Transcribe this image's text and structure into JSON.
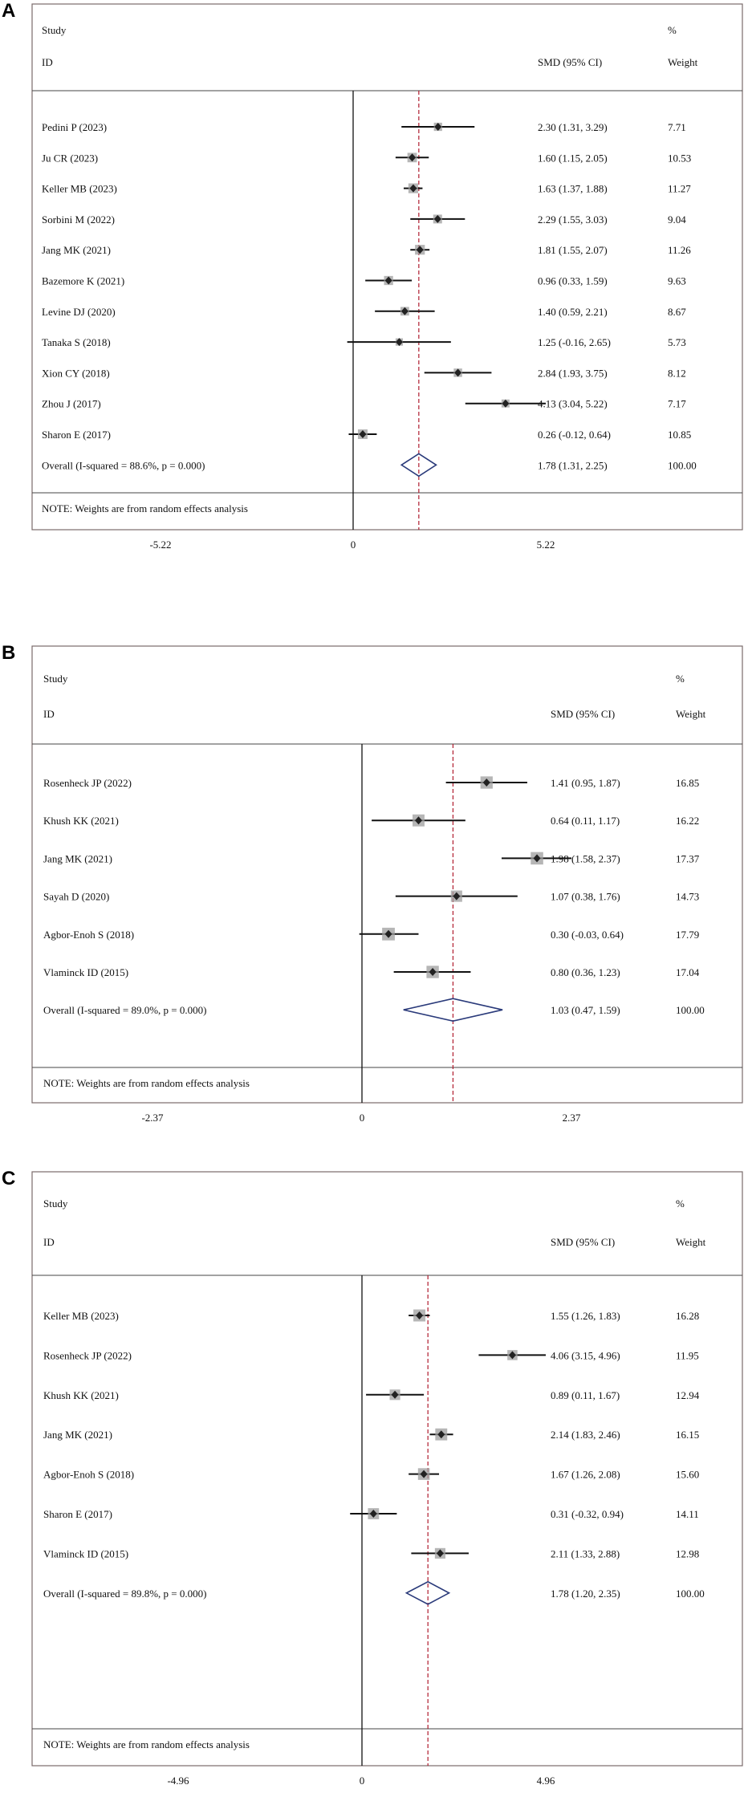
{
  "panels": [
    {
      "label": "A",
      "headers": {
        "study": "Study",
        "id": "ID",
        "smd": "SMD (95% CI)",
        "pct": "%",
        "weight": "Weight"
      },
      "note": "NOTE: Weights are from random effects analysis",
      "axis_ticks": [
        "-5.22",
        "0",
        "5.22"
      ],
      "chart_data": {
        "type": "forest",
        "xlim": [
          -5.22,
          5.22
        ],
        "null_line": 0,
        "studies": [
          {
            "id": "Pedini P (2023)",
            "smd": 2.3,
            "lo": 1.31,
            "hi": 3.29,
            "ci": "2.30 (1.31, 3.29)",
            "weight": "7.71"
          },
          {
            "id": "Ju CR (2023)",
            "smd": 1.6,
            "lo": 1.15,
            "hi": 2.05,
            "ci": "1.60 (1.15, 2.05)",
            "weight": "10.53"
          },
          {
            "id": "Keller MB (2023)",
            "smd": 1.63,
            "lo": 1.37,
            "hi": 1.88,
            "ci": "1.63 (1.37, 1.88)",
            "weight": "11.27"
          },
          {
            "id": "Sorbini M (2022)",
            "smd": 2.29,
            "lo": 1.55,
            "hi": 3.03,
            "ci": "2.29 (1.55, 3.03)",
            "weight": "9.04"
          },
          {
            "id": "Jang MK (2021)",
            "smd": 1.81,
            "lo": 1.55,
            "hi": 2.07,
            "ci": "1.81 (1.55, 2.07)",
            "weight": "11.26"
          },
          {
            "id": "Bazemore K (2021)",
            "smd": 0.96,
            "lo": 0.33,
            "hi": 1.59,
            "ci": "0.96 (0.33, 1.59)",
            "weight": "9.63"
          },
          {
            "id": "Levine DJ (2020)",
            "smd": 1.4,
            "lo": 0.59,
            "hi": 2.21,
            "ci": "1.40 (0.59, 2.21)",
            "weight": "8.67"
          },
          {
            "id": "Tanaka S (2018)",
            "smd": 1.25,
            "lo": -0.16,
            "hi": 2.65,
            "ci": "1.25 (-0.16, 2.65)",
            "weight": "5.73"
          },
          {
            "id": "Xion CY (2018)",
            "smd": 2.84,
            "lo": 1.93,
            "hi": 3.75,
            "ci": "2.84 (1.93, 3.75)",
            "weight": "8.12"
          },
          {
            "id": "Zhou J (2017)",
            "smd": 4.13,
            "lo": 3.04,
            "hi": 5.22,
            "ci": "4.13 (3.04, 5.22)",
            "weight": "7.17"
          },
          {
            "id": "Sharon E (2017)",
            "smd": 0.26,
            "lo": -0.12,
            "hi": 0.64,
            "ci": "0.26 (-0.12, 0.64)",
            "weight": "10.85"
          }
        ],
        "overall": {
          "id": "Overall  (I-squared = 88.6%, p = 0.000)",
          "smd": 1.78,
          "lo": 1.31,
          "hi": 2.25,
          "ci": "1.78 (1.31, 2.25)",
          "weight": "100.00"
        }
      }
    },
    {
      "label": "B",
      "headers": {
        "study": "Study",
        "id": "ID",
        "smd": "SMD (95% CI)",
        "pct": "%",
        "weight": "Weight"
      },
      "note": "NOTE: Weights are from random effects analysis",
      "axis_ticks": [
        "-2.37",
        "0",
        "2.37"
      ],
      "chart_data": {
        "type": "forest",
        "xlim": [
          -2.37,
          2.37
        ],
        "null_line": 0,
        "studies": [
          {
            "id": "Rosenheck JP (2022)",
            "smd": 1.41,
            "lo": 0.95,
            "hi": 1.87,
            "ci": "1.41 (0.95, 1.87)",
            "weight": "16.85"
          },
          {
            "id": "Khush KK (2021)",
            "smd": 0.64,
            "lo": 0.11,
            "hi": 1.17,
            "ci": "0.64 (0.11, 1.17)",
            "weight": "16.22"
          },
          {
            "id": "Jang MK (2021)",
            "smd": 1.98,
            "lo": 1.58,
            "hi": 2.37,
            "ci": "1.98 (1.58, 2.37)",
            "weight": "17.37"
          },
          {
            "id": "Sayah D (2020)",
            "smd": 1.07,
            "lo": 0.38,
            "hi": 1.76,
            "ci": "1.07 (0.38, 1.76)",
            "weight": "14.73"
          },
          {
            "id": "Agbor-Enoh S (2018)",
            "smd": 0.3,
            "lo": -0.03,
            "hi": 0.64,
            "ci": "0.30 (-0.03, 0.64)",
            "weight": "17.79"
          },
          {
            "id": "Vlaminck ID (2015)",
            "smd": 0.8,
            "lo": 0.36,
            "hi": 1.23,
            "ci": "0.80 (0.36, 1.23)",
            "weight": "17.04"
          }
        ],
        "overall": {
          "id": "Overall  (I-squared = 89.0%, p = 0.000)",
          "smd": 1.03,
          "lo": 0.47,
          "hi": 1.59,
          "ci": "1.03 (0.47, 1.59)",
          "weight": "100.00"
        }
      }
    },
    {
      "label": "C",
      "headers": {
        "study": "Study",
        "id": "ID",
        "smd": "SMD (95% CI)",
        "pct": "%",
        "weight": "Weight"
      },
      "note": "NOTE: Weights are from random effects analysis",
      "axis_ticks": [
        "-4.96",
        "0",
        "4.96"
      ],
      "chart_data": {
        "type": "forest",
        "xlim": [
          -4.96,
          4.96
        ],
        "null_line": 0,
        "studies": [
          {
            "id": "Keller MB (2023)",
            "smd": 1.55,
            "lo": 1.26,
            "hi": 1.83,
            "ci": "1.55 (1.26, 1.83)",
            "weight": "16.28"
          },
          {
            "id": "Rosenheck JP (2022)",
            "smd": 4.06,
            "lo": 3.15,
            "hi": 4.96,
            "ci": "4.06 (3.15, 4.96)",
            "weight": "11.95"
          },
          {
            "id": "Khush KK (2021)",
            "smd": 0.89,
            "lo": 0.11,
            "hi": 1.67,
            "ci": "0.89 (0.11, 1.67)",
            "weight": "12.94"
          },
          {
            "id": "Jang MK (2021)",
            "smd": 2.14,
            "lo": 1.83,
            "hi": 2.46,
            "ci": "2.14 (1.83, 2.46)",
            "weight": "16.15"
          },
          {
            "id": "Agbor-Enoh S (2018)",
            "smd": 1.67,
            "lo": 1.26,
            "hi": 2.08,
            "ci": "1.67 (1.26, 2.08)",
            "weight": "15.60"
          },
          {
            "id": "Sharon E (2017)",
            "smd": 0.31,
            "lo": -0.32,
            "hi": 0.94,
            "ci": "0.31 (-0.32, 0.94)",
            "weight": "14.11"
          },
          {
            "id": "Vlaminck ID (2015)",
            "smd": 2.11,
            "lo": 1.33,
            "hi": 2.88,
            "ci": "2.11 (1.33, 2.88)",
            "weight": "12.98"
          }
        ],
        "overall": {
          "id": "Overall  (I-squared = 89.8%, p = 0.000)",
          "smd": 1.78,
          "lo": 1.2,
          "hi": 2.35,
          "ci": "1.78 (1.20, 2.35)",
          "weight": "100.00"
        }
      }
    }
  ],
  "colors": {
    "frame": "#7a6a6a",
    "ci_line": "#111111",
    "point": "#222222",
    "weight_box": "#9e9e9e",
    "overall_line": "#b01c2e",
    "diamond": "#2a3a7a"
  }
}
